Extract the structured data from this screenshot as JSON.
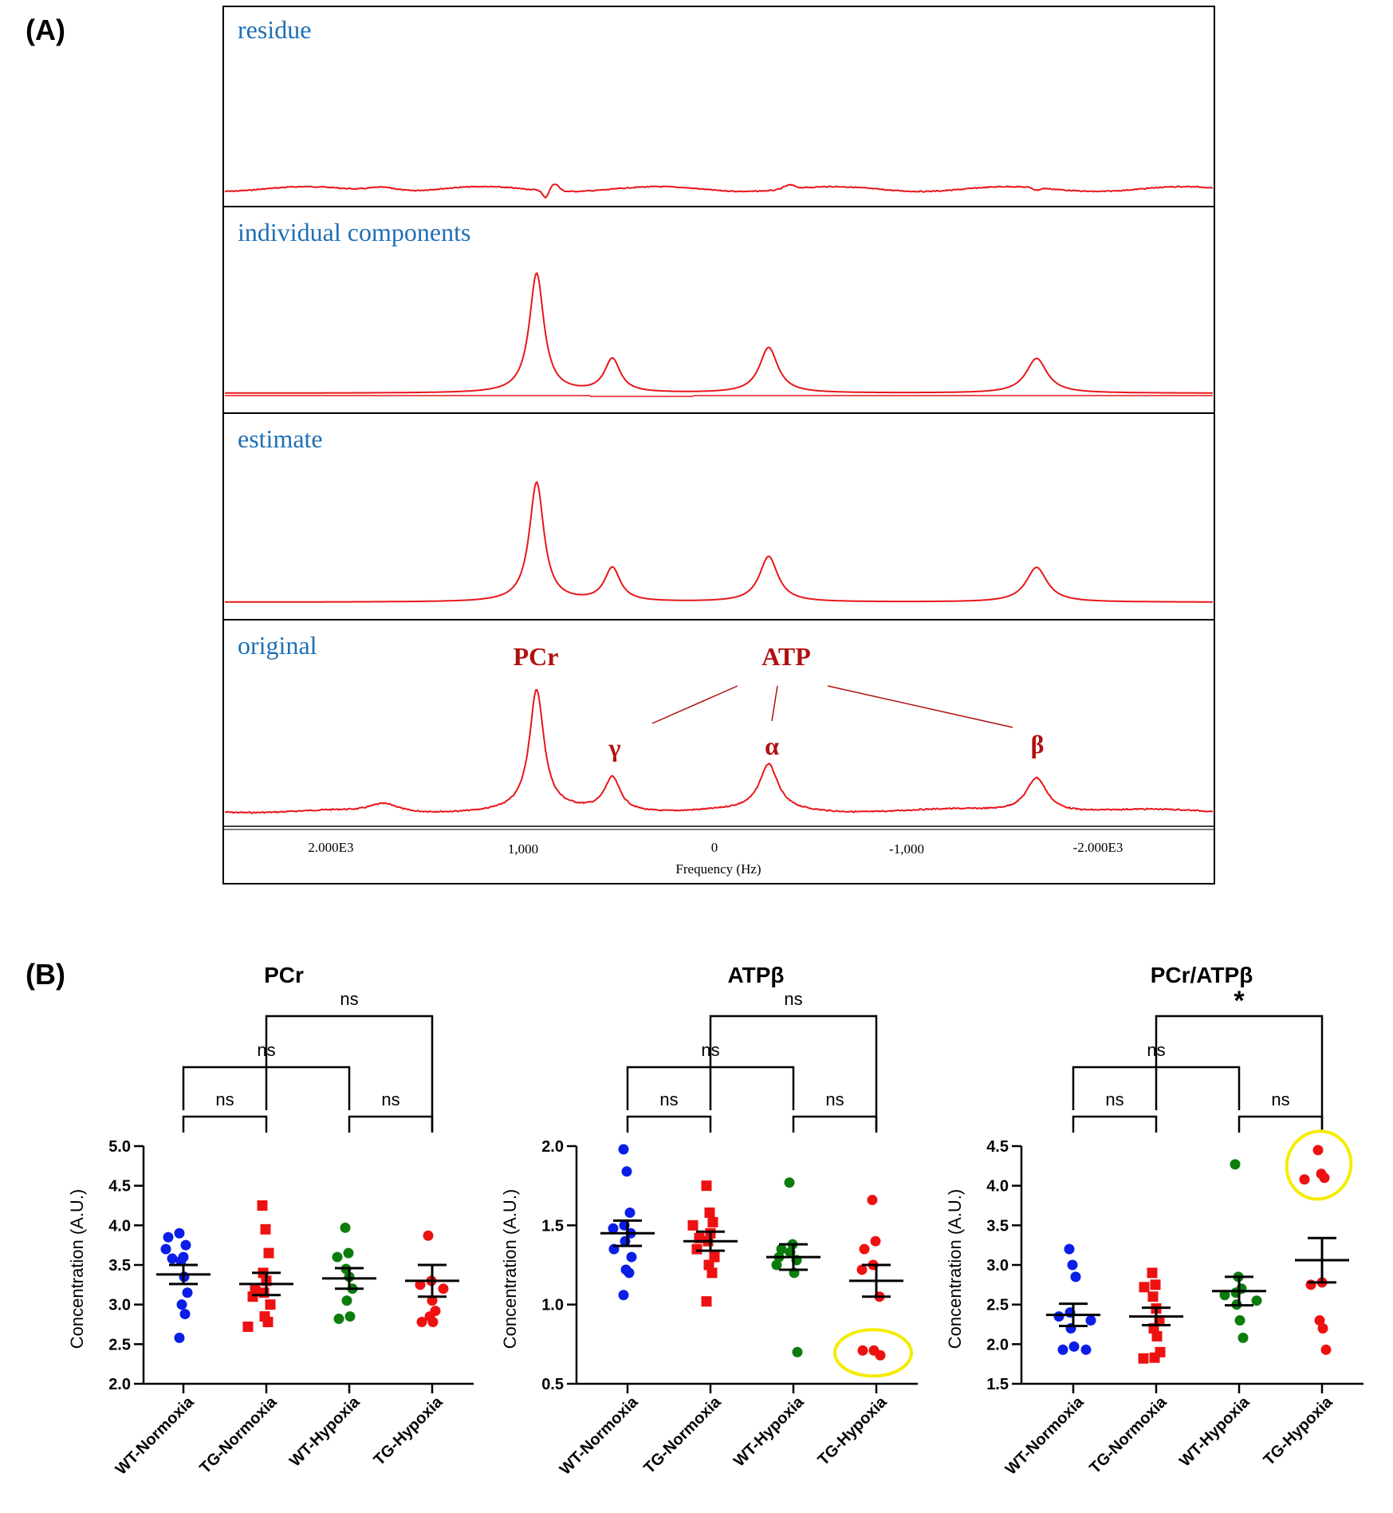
{
  "colors": {
    "trace": "#e8161b",
    "trace_label": "#1f6fb5",
    "peak_label": "#b01010",
    "wt": "#0a1ee6",
    "tg": "#ee1111",
    "wt_hypoxia": "#0c7d0c",
    "highlight": "#f5ec00"
  },
  "panel_a": {
    "letter": "(A)",
    "traces": [
      "residue",
      "individual components",
      "estimate",
      "original"
    ],
    "peaks": {
      "pcr": "PCr",
      "atp": "ATP",
      "gamma": "γ",
      "alpha": "α",
      "beta": "β"
    },
    "x_ticks": [
      "2.000E3",
      "1,000",
      "0",
      "-1,000",
      "-2.000E3"
    ],
    "x_label": "Frequency (Hz)"
  },
  "panel_b": {
    "letter": "(B)"
  },
  "chart_data": [
    {
      "type": "scatter",
      "title": "PCr",
      "ylabel": "Concentration (A.U.)",
      "ylim": [
        2.0,
        5.0
      ],
      "yticks": [
        "2.0",
        "2.5",
        "3.0",
        "3.5",
        "4.0",
        "4.5",
        "5.0"
      ],
      "categories": [
        "WT-Normoxia",
        "TG-Normoxia",
        "WT-Hypoxia",
        "TG-Hypoxia"
      ],
      "markers": [
        "circle",
        "square",
        "circle",
        "circle"
      ],
      "series": [
        {
          "name": "WT-Normoxia",
          "mean": 3.38,
          "sem": 0.12,
          "values": [
            3.9,
            3.85,
            3.75,
            3.7,
            3.6,
            3.58,
            3.55,
            3.35,
            3.15,
            3.0,
            2.88,
            2.58
          ]
        },
        {
          "name": "TG-Normoxia",
          "mean": 3.26,
          "sem": 0.14,
          "values": [
            4.25,
            3.95,
            3.65,
            3.4,
            3.3,
            3.2,
            3.15,
            3.1,
            3.0,
            2.85,
            2.78,
            2.72
          ]
        },
        {
          "name": "WT-Hypoxia",
          "mean": 3.33,
          "sem": 0.13,
          "values": [
            3.97,
            3.65,
            3.6,
            3.45,
            3.35,
            3.2,
            3.05,
            2.85,
            2.82
          ]
        },
        {
          "name": "TG-Hypoxia",
          "mean": 3.3,
          "sem": 0.2,
          "values": [
            3.87,
            3.3,
            3.25,
            3.2,
            3.05,
            2.92,
            2.85,
            2.78,
            2.78
          ]
        }
      ],
      "comparisons": [
        {
          "from": 0,
          "to": 1,
          "label": "ns",
          "level": 1
        },
        {
          "from": 2,
          "to": 3,
          "label": "ns",
          "level": 1
        },
        {
          "from": 0,
          "to": 2,
          "label": "ns",
          "level": 2
        },
        {
          "from": 1,
          "to": 3,
          "label": "ns",
          "level": 3
        }
      ],
      "highlight": null
    },
    {
      "type": "scatter",
      "title": "ATPβ",
      "ylabel": "Concentration (A.U.)",
      "ylim": [
        0.5,
        2.0
      ],
      "yticks": [
        "0.5",
        "1.0",
        "1.5",
        "2.0"
      ],
      "categories": [
        "WT-Normoxia",
        "TG-Normoxia",
        "WT-Hypoxia",
        "TG-Hypoxia"
      ],
      "markers": [
        "circle",
        "square",
        "circle",
        "circle"
      ],
      "series": [
        {
          "name": "WT-Normoxia",
          "mean": 1.45,
          "sem": 0.08,
          "values": [
            1.98,
            1.84,
            1.58,
            1.5,
            1.48,
            1.45,
            1.4,
            1.35,
            1.3,
            1.22,
            1.2,
            1.06
          ]
        },
        {
          "name": "TG-Normoxia",
          "mean": 1.4,
          "sem": 0.06,
          "values": [
            1.75,
            1.58,
            1.52,
            1.5,
            1.45,
            1.42,
            1.4,
            1.35,
            1.3,
            1.25,
            1.2,
            1.02
          ]
        },
        {
          "name": "WT-Hypoxia",
          "mean": 1.3,
          "sem": 0.08,
          "values": [
            1.77,
            1.38,
            1.35,
            1.33,
            1.3,
            1.28,
            1.25,
            1.2,
            0.7
          ]
        },
        {
          "name": "TG-Hypoxia",
          "mean": 1.15,
          "sem": 0.1,
          "values": [
            1.66,
            1.4,
            1.35,
            1.25,
            1.22,
            1.05,
            0.71,
            0.71,
            0.68
          ]
        }
      ],
      "comparisons": [
        {
          "from": 0,
          "to": 1,
          "label": "ns",
          "level": 1
        },
        {
          "from": 2,
          "to": 3,
          "label": "ns",
          "level": 1
        },
        {
          "from": 0,
          "to": 2,
          "label": "ns",
          "level": 2
        },
        {
          "from": 1,
          "to": 3,
          "label": "ns",
          "level": 3
        }
      ],
      "highlight": {
        "group": 3,
        "ymin": 0.66,
        "ymax": 0.73
      }
    },
    {
      "type": "scatter",
      "title": "PCr/ATPβ",
      "ylabel": "Concentration (A.U.)",
      "ylim": [
        1.5,
        4.5
      ],
      "yticks": [
        "1.5",
        "2.0",
        "2.5",
        "3.0",
        "3.5",
        "4.0",
        "4.5"
      ],
      "categories": [
        "WT-Normoxia",
        "TG-Normoxia",
        "WT-Hypoxia",
        "TG-Hypoxia"
      ],
      "markers": [
        "circle",
        "square",
        "circle",
        "circle"
      ],
      "series": [
        {
          "name": "WT-Normoxia",
          "mean": 2.37,
          "sem": 0.14,
          "values": [
            3.2,
            3.0,
            2.85,
            2.4,
            2.35,
            2.3,
            2.2,
            1.97,
            1.93,
            1.93
          ]
        },
        {
          "name": "TG-Normoxia",
          "mean": 2.35,
          "sem": 0.11,
          "values": [
            2.9,
            2.75,
            2.72,
            2.6,
            2.45,
            2.3,
            2.2,
            2.1,
            1.9,
            1.83,
            1.82
          ]
        },
        {
          "name": "WT-Hypoxia",
          "mean": 2.67,
          "sem": 0.18,
          "values": [
            4.27,
            2.85,
            2.7,
            2.65,
            2.62,
            2.55,
            2.5,
            2.3,
            2.08
          ]
        },
        {
          "name": "TG-Hypoxia",
          "mean": 3.06,
          "sem": 0.28,
          "values": [
            4.45,
            4.15,
            4.1,
            4.08,
            2.78,
            2.75,
            2.3,
            2.2,
            1.93
          ]
        }
      ],
      "comparisons": [
        {
          "from": 0,
          "to": 1,
          "label": "ns",
          "level": 1
        },
        {
          "from": 2,
          "to": 3,
          "label": "ns",
          "level": 1
        },
        {
          "from": 0,
          "to": 2,
          "label": "ns",
          "level": 2
        },
        {
          "from": 1,
          "to": 3,
          "label": "*",
          "level": 3
        }
      ],
      "highlight": {
        "group": 3,
        "ymin": 4.05,
        "ymax": 4.47
      }
    }
  ]
}
